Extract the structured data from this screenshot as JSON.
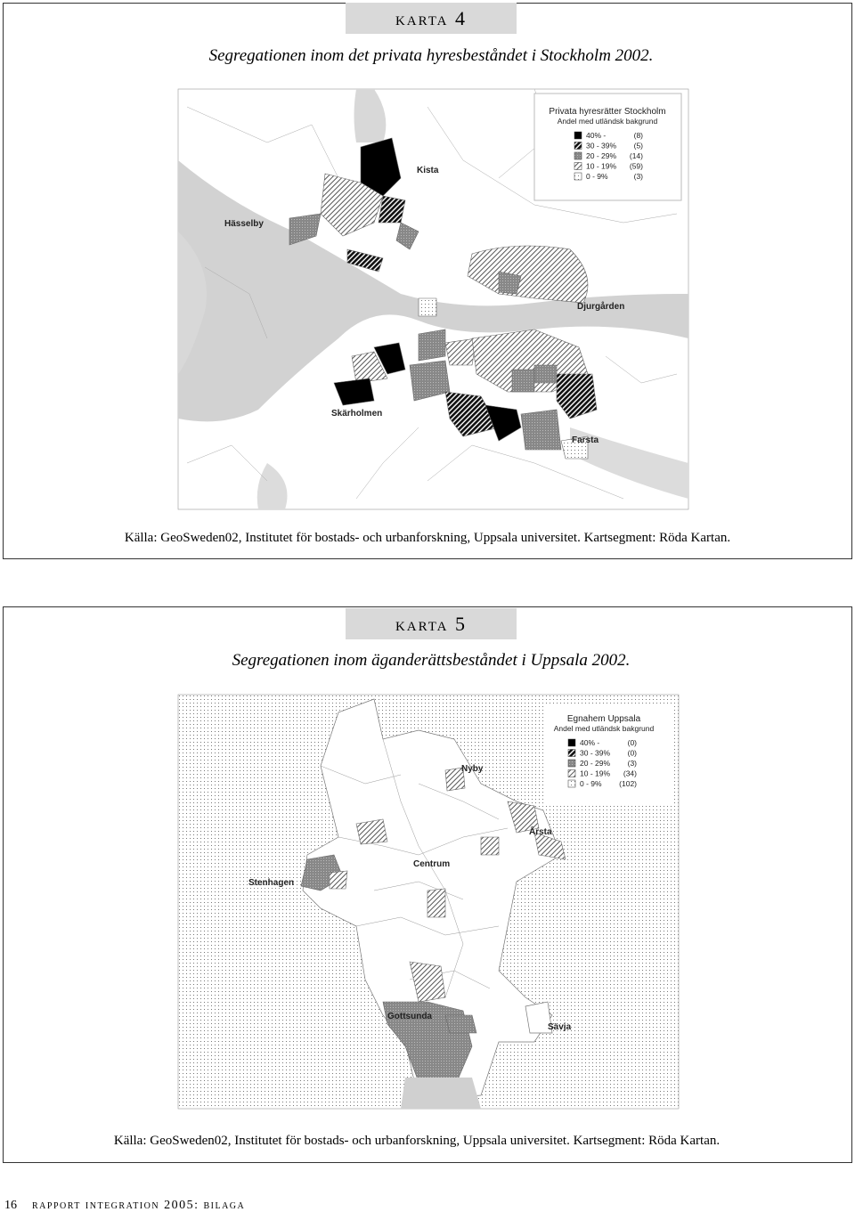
{
  "maps": [
    {
      "heading": "karta 4",
      "title": "Segregationen inom det privata hyresbeståndet i Stockholm 2002.",
      "places": [
        "Kista",
        "Hässelby",
        "Djurgården",
        "Skärholmen",
        "Farsta"
      ],
      "legend": {
        "title": "Privata hyresrätter Stockholm",
        "subtitle": "Andel med utländsk bakgrund",
        "rows": [
          {
            "range": "40% -",
            "count": "(8)"
          },
          {
            "range": "30   - 39%",
            "count": "(5)"
          },
          {
            "range": "20   - 29%",
            "count": "(14)"
          },
          {
            "range": "10   - 19%",
            "count": "(59)"
          },
          {
            "range": "0   -   9%",
            "count": "(3)"
          }
        ]
      },
      "source": "Källa: GeoSweden02, Institutet för bostads- och urbanforskning, Uppsala universitet. Kartsegment: Röda Kartan."
    },
    {
      "heading": "karta 5",
      "title": "Segregationen inom äganderättsbeståndet i Uppsala 2002.",
      "places": [
        "Nyby",
        "Årsta",
        "Centrum",
        "Stenhagen",
        "Gottsunda",
        "Sävja"
      ],
      "legend": {
        "title": "Egnahem Uppsala",
        "subtitle": "Andel med utländsk bakgrund",
        "rows": [
          {
            "range": "40% -",
            "count": "(0)"
          },
          {
            "range": "30   - 39%",
            "count": "(0)"
          },
          {
            "range": "20   - 29%",
            "count": "(3)"
          },
          {
            "range": "10   - 19%",
            "count": "(34)"
          },
          {
            "range": "0   -   9%",
            "count": "(102)"
          }
        ]
      },
      "source": "Källa: GeoSweden02, Institutet för bostads- och urbanforskning, Uppsala universitet. Kartsegment: Röda Kartan."
    }
  ],
  "footer": {
    "page": "16",
    "text": "rapport integration 2005: bilaga"
  }
}
